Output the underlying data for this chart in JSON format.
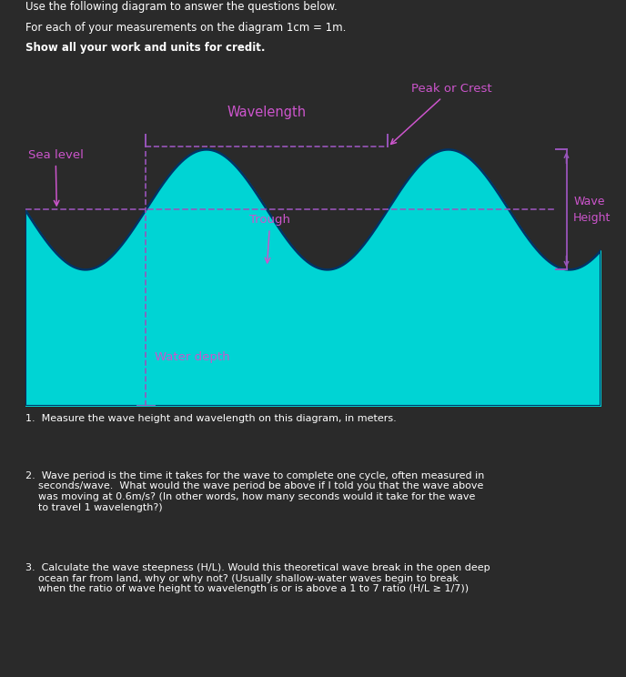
{
  "outer_bg": "#2a2a2a",
  "header_bg": "#2a2a2a",
  "header_text_color": "#ffffff",
  "header_bold_line": "Show all your work and units for credit.",
  "header_lines": [
    "Use the following diagram to answer the questions below.",
    "For each of your measurements on the diagram 1cm = 1m.",
    "Show all your work and units for credit."
  ],
  "wave_bg_color": "#ffffff",
  "wave_fill_color": "#00d4d4",
  "wave_line_color": "#003366",
  "dashed_line_color": "#9955bb",
  "label_color": "#cc55cc",
  "question_text_color": "#ffffff",
  "q1": "1.  Measure the wave height and wavelength on this diagram, in meters.",
  "q2_parts": [
    "2.  Wave period is the time it takes for the wave to complete one cycle, often measured in",
    "    seconds/wave.  What would the wave period be above if I told you that the wave above",
    "    was moving at 0.6m/s? (In other words, how many seconds would it take for the wave",
    "    to travel 1 wavelength?)"
  ],
  "q3_parts": [
    "3.  Calculate the wave steepness (H/L). Would this theoretical wave break in the open deep",
    "    ocean far from land, why or why not? (Usually shallow-water waves begin to break",
    "    when the ratio of wave height to wavelength is or is above a 1 to 7 ratio (H/L ≥ 1/7))"
  ],
  "sea_level": 3.6,
  "amplitude": 1.1,
  "wave_period": 4.2,
  "wave_phase": 2.1,
  "x_min": 0,
  "x_max": 10,
  "y_min": 0,
  "y_max": 6.2,
  "peak1_x": 2.1,
  "peak2_x": 6.3,
  "dashed_vert_x": 2.1,
  "bracket_x": 9.4,
  "annotations": {
    "sea_level": "Sea level",
    "wavelength": "Wavelength",
    "peak_or_crest": "Peak or Crest",
    "trough": "Trough",
    "water_depth": "Water depth",
    "wave_height": "Wave\nHeight"
  }
}
